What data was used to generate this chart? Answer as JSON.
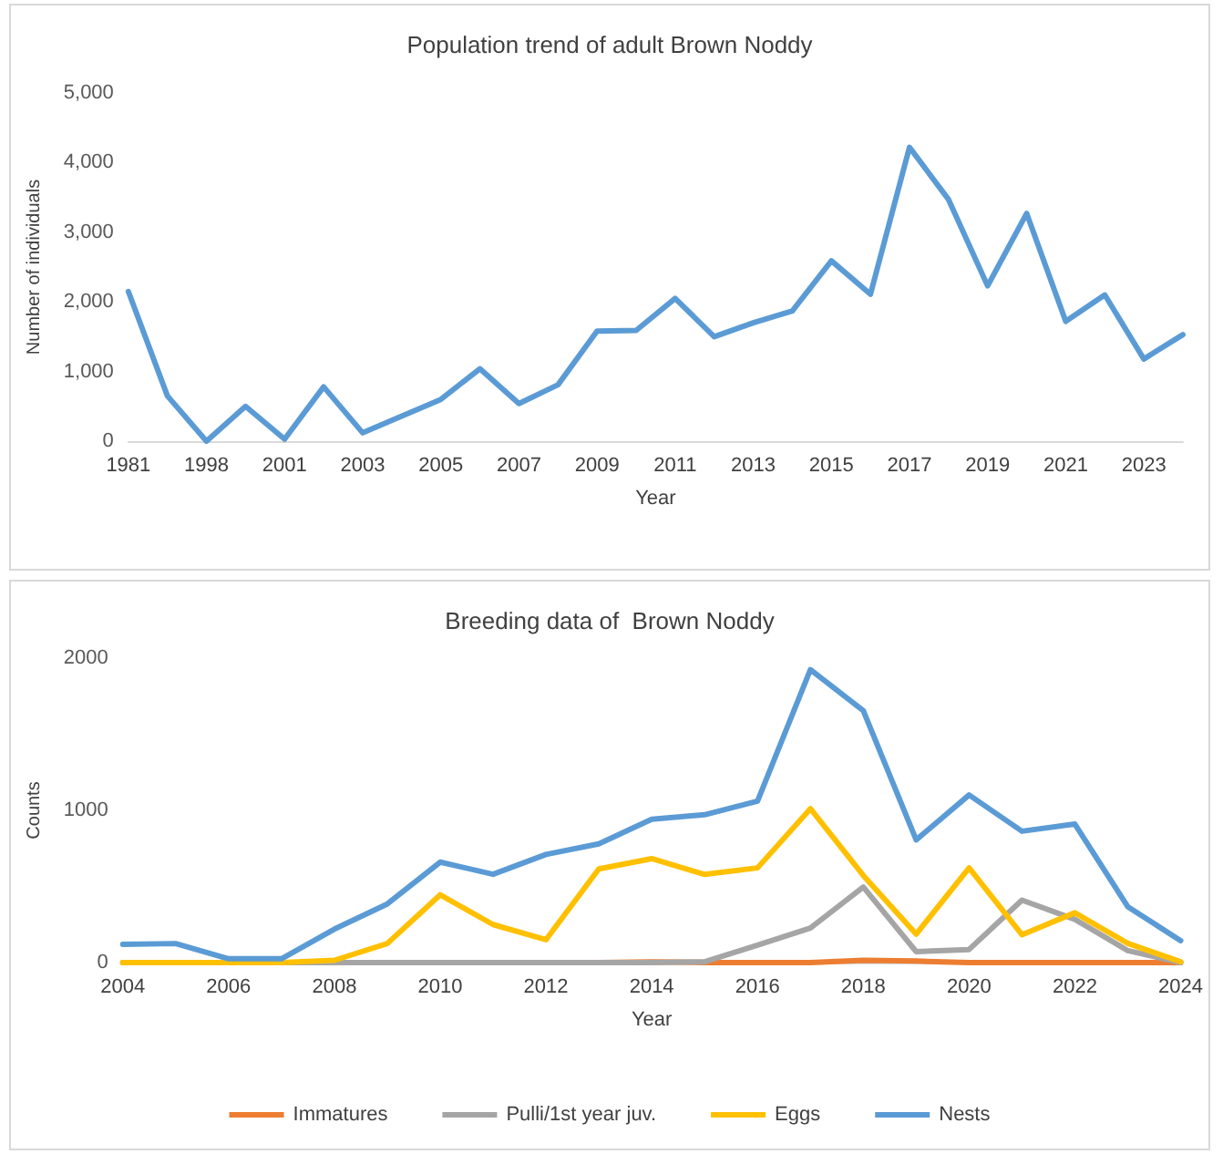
{
  "chart_data": [
    {
      "type": "line",
      "title": "Population trend of adult Brown Noddy",
      "xlabel": "Year",
      "ylabel": "Number of individuals",
      "categories": [
        "1981",
        null,
        "1998",
        null,
        "2001",
        null,
        "2003",
        null,
        "2005",
        null,
        "2007",
        null,
        "2009",
        null,
        "2011",
        null,
        "2013",
        null,
        "2015",
        null,
        "2017",
        null,
        "2019",
        null,
        "2021",
        null,
        "2023",
        null
      ],
      "series": [
        {
          "color": "#5b9bd5",
          "values": [
            2150,
            650,
            0,
            500,
            30,
            780,
            120,
            360,
            600,
            1040,
            540,
            810,
            1580,
            1590,
            2050,
            1500,
            1700,
            1870,
            2590,
            2110,
            4220,
            3470,
            2230,
            3270,
            1720,
            2100,
            1180,
            1530
          ]
        }
      ],
      "ylim": [
        0,
        5000
      ],
      "yticks": [
        {
          "value": 0,
          "label": "0"
        },
        {
          "value": 1000,
          "label": "1,000"
        },
        {
          "value": 2000,
          "label": "2,000"
        },
        {
          "value": 3000,
          "label": "3,000"
        },
        {
          "value": 4000,
          "label": "4,000"
        },
        {
          "value": 5000,
          "label": "5,000"
        }
      ],
      "grid": false,
      "legend": false,
      "marker": "none",
      "line_style": "solid"
    },
    {
      "type": "line",
      "title": "Breeding data of  Brown Noddy",
      "xlabel": "Year",
      "ylabel": "Counts",
      "categories": [
        "2004",
        null,
        "2006",
        null,
        "2008",
        null,
        "2010",
        null,
        "2012",
        null,
        "2014",
        null,
        "2016",
        null,
        "2018",
        null,
        "2020",
        null,
        "2022",
        null,
        "2024"
      ],
      "series": [
        {
          "name": "Immatures",
          "color": "#ed7d31",
          "values": [
            0,
            0,
            0,
            0,
            0,
            0,
            0,
            0,
            0,
            0,
            5,
            0,
            0,
            0,
            15,
            10,
            0,
            0,
            0,
            0,
            0
          ]
        },
        {
          "name": "Pulli/1st year juv.",
          "color": "#a5a5a5",
          "values": [
            0,
            0,
            0,
            0,
            0,
            0,
            0,
            0,
            0,
            0,
            0,
            5,
            115,
            227,
            496,
            72,
            86,
            410,
            284,
            79,
            0
          ]
        },
        {
          "name": "Eggs",
          "color": "#ffc000",
          "values": [
            0,
            0,
            0,
            0,
            15,
            125,
            445,
            250,
            150,
            615,
            683,
            579,
            622,
            1011,
            572,
            187,
            622,
            183,
            327,
            126,
            5
          ]
        },
        {
          "name": "Nests",
          "color": "#5b9bd5",
          "values": [
            120,
            125,
            25,
            25,
            220,
            385,
            660,
            580,
            710,
            780,
            942,
            971,
            1061,
            1924,
            1655,
            806,
            1101,
            863,
            910,
            367,
            144
          ]
        }
      ],
      "ylim": [
        0,
        2000
      ],
      "yticks": [
        0,
        1000,
        2000
      ],
      "grid": false,
      "legend": "bottom",
      "marker": "none",
      "line_style": "solid"
    }
  ]
}
